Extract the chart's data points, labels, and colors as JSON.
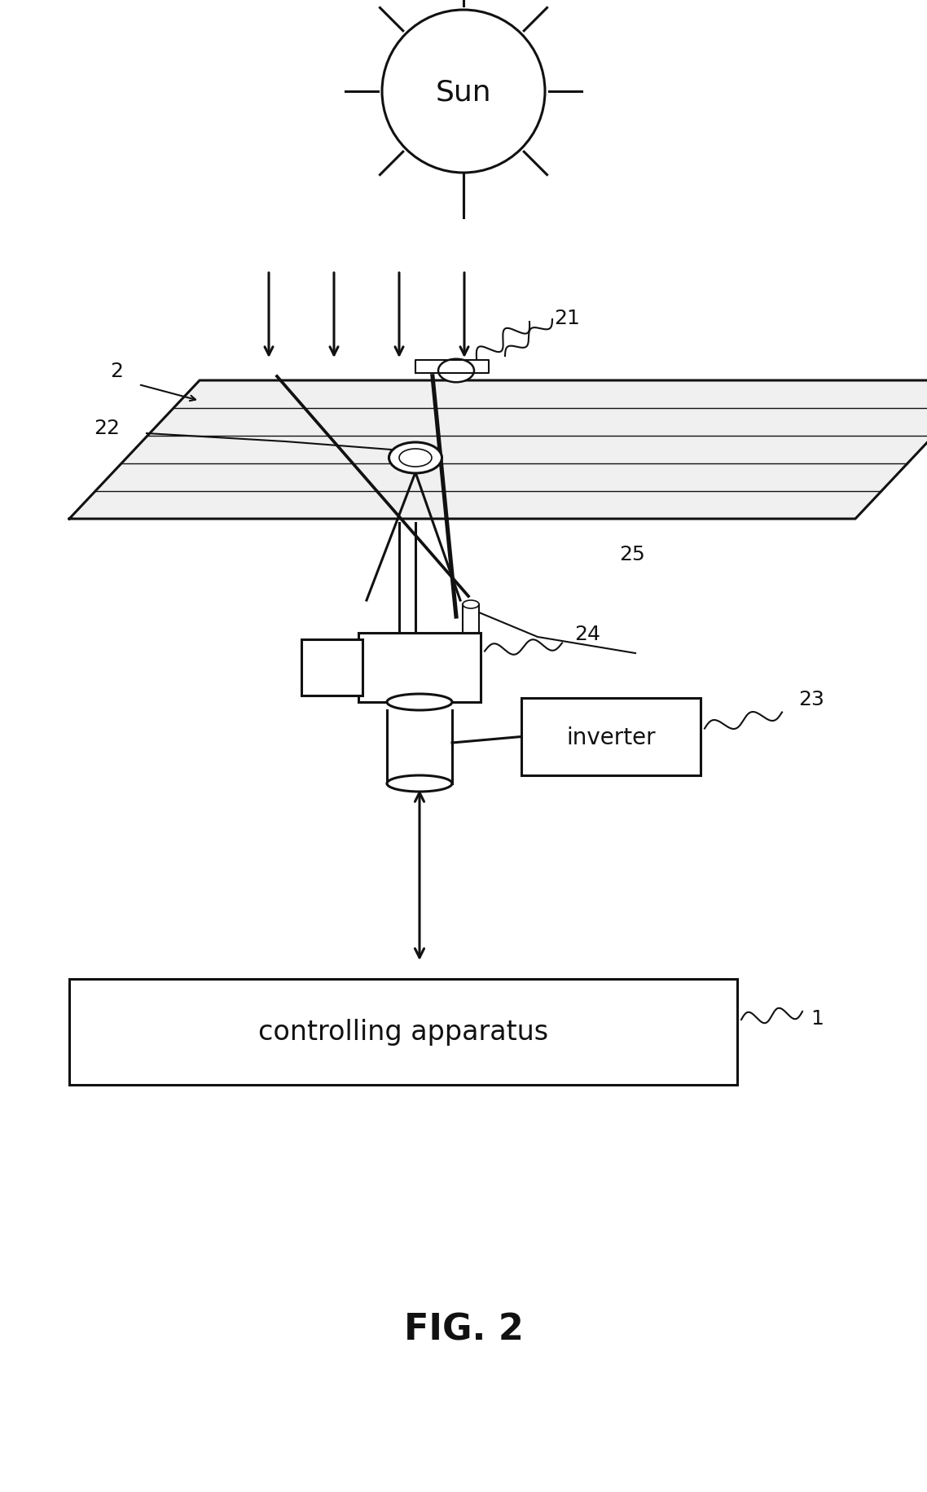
{
  "background_color": "#ffffff",
  "fig_width": 11.38,
  "fig_height": 18.33,
  "title": "FIG. 2",
  "title_fontsize": 32,
  "label_fontsize": 18,
  "sun_text": "Sun",
  "label_1": "1",
  "label_2": "2",
  "label_21": "21",
  "label_22": "22",
  "label_23": "23",
  "label_24": "24",
  "label_25": "25",
  "inverter_text": "inverter",
  "controlling_text": "controlling apparatus",
  "black": "#111111"
}
